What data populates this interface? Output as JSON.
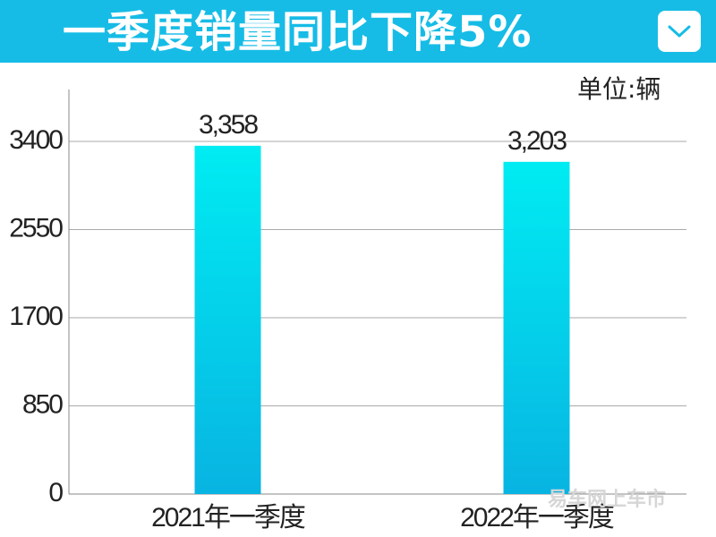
{
  "header": {
    "title": "一季度销量同比下降5%",
    "dropdown_icon": "chevron-down-icon"
  },
  "unit_label": "单位:辆",
  "watermark": "易车网上车市",
  "colors": {
    "header_bg": "#16bce6",
    "bar_top": "#00ecf2",
    "bar_bottom": "#08b4e2",
    "gridline": "#aaaaaa",
    "axis": "#888888"
  },
  "chart_data": {
    "type": "bar",
    "categories": [
      "2021年一季度",
      "2022年一季度"
    ],
    "values": [
      3358,
      3203
    ],
    "value_labels": [
      "3,358",
      "3,203"
    ],
    "yticks": [
      0,
      850,
      1700,
      2550,
      3400
    ],
    "ylim": [
      0,
      3400
    ],
    "grid": true
  }
}
